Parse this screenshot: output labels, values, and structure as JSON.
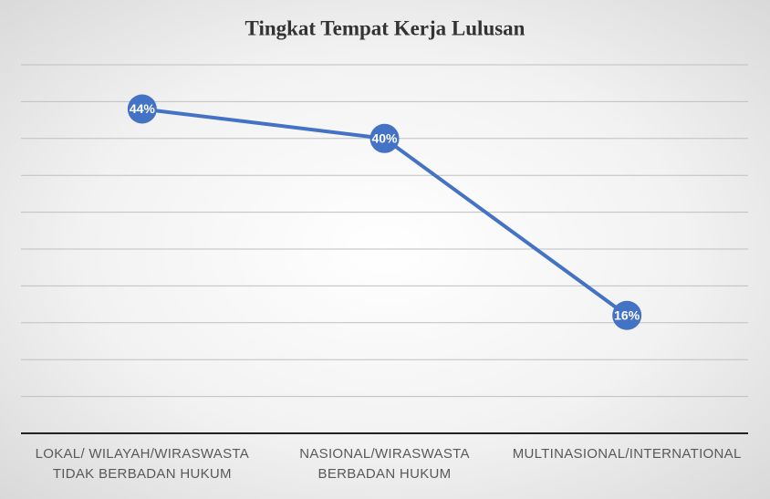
{
  "chart_data": {
    "type": "line",
    "title": "Tingkat Tempat Kerja Lulusan",
    "categories": [
      "LOKAL/ WILAYAH/WIRASWASTA TIDAK BERBADAN HUKUM",
      "NASIONAL/WIRASWASTA BERBADAN HUKUM",
      "MULTINASIONAL/INTERNATIONAL"
    ],
    "values": [
      44,
      40,
      16
    ],
    "value_labels": [
      "44%",
      "40%",
      "16%"
    ],
    "color": "#4472c4",
    "ylim": [
      0,
      50
    ],
    "yticks": [
      0,
      5,
      10,
      15,
      20,
      25,
      30,
      35,
      40,
      45,
      50
    ],
    "grid": true
  }
}
